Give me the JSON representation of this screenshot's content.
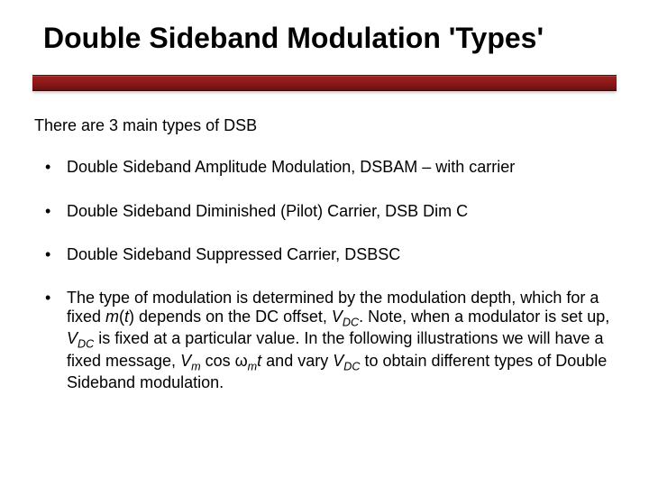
{
  "slide": {
    "title": "Double Sideband Modulation 'Types'",
    "intro": "There are 3 main types of DSB",
    "bullets": [
      "Double Sideband Amplitude Modulation, DSBAM – with carrier",
      "Double Sideband Diminished (Pilot) Carrier, DSB Dim C",
      "Double Sideband Suppressed Carrier, DSBSC"
    ],
    "paragraph": {
      "p1": "The type of modulation is determined by the modulation depth, which for a fixed ",
      "m_t": "m",
      "p2": "(",
      "t": "t",
      "p3": ") depends on the DC offset, ",
      "vdc1_v": "V",
      "vdc1_sub": "DC",
      "p4": ". Note, when a modulator is set up, ",
      "vdc2_v": "V",
      "vdc2_sub": "DC",
      "p5": " is fixed at a particular value. In the following illustrations we will have a fixed message, ",
      "vm_v": "V",
      "vm_sub": "m",
      "p6": " cos ω",
      "wm_sub": "m",
      "p7": "t",
      "p8": " and vary ",
      "vdc3_v": "V",
      "vdc3_sub": "DC",
      "p9": " to obtain different types of Double Sideband modulation."
    }
  },
  "styles": {
    "background_color": "#ffffff",
    "text_color": "#000000",
    "divider_gradient_top": "#a02020",
    "divider_gradient_mid": "#8b1a1a",
    "divider_gradient_bottom": "#6b1010",
    "title_fontsize": 32,
    "body_fontsize": 18,
    "font_family": "Arial"
  }
}
